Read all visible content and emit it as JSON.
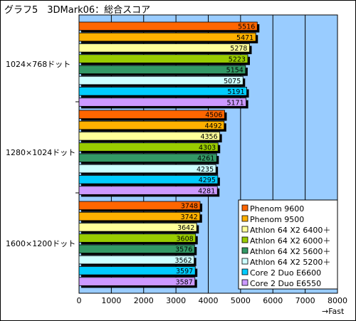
{
  "title": "グラフ5　3DMark06：総合スコア",
  "chart_data": {
    "type": "bar",
    "orientation": "horizontal",
    "title": "グラフ5　3DMark06：総合スコア",
    "categories": [
      "1024×768ドット",
      "1280×1024ドット",
      "1600×1200ドット"
    ],
    "series": [
      {
        "name": "Phenom 9600",
        "color": "#ff6600",
        "values": [
          5516,
          4506,
          3748
        ]
      },
      {
        "name": "Phenom 9500",
        "color": "#ffb000",
        "values": [
          5471,
          4492,
          3742
        ]
      },
      {
        "name": "Athlon 64 X2 6400＋",
        "color": "#ffff99",
        "values": [
          5278,
          4356,
          3642
        ]
      },
      {
        "name": "Athlon 64 X2 6000＋",
        "color": "#99cc00",
        "values": [
          5223,
          4303,
          3608
        ]
      },
      {
        "name": "Athlon 64 X2 5600＋",
        "color": "#339966",
        "values": [
          5154,
          4261,
          3576
        ]
      },
      {
        "name": "Athlon 64 X2 5200＋",
        "color": "#ccffff",
        "values": [
          5075,
          4235,
          3562
        ]
      },
      {
        "name": "Core 2 Duo E6600",
        "color": "#00ccff",
        "values": [
          5191,
          4295,
          3597
        ]
      },
      {
        "name": "Core 2 Duo E6550",
        "color": "#cc99ff",
        "values": [
          5171,
          4281,
          3587
        ]
      }
    ],
    "xlim": [
      0,
      8000
    ],
    "xticks": [
      0,
      1000,
      2000,
      3000,
      4000,
      5000,
      6000,
      7000,
      8000
    ],
    "xlabel": "→Fast",
    "plot_background": "#99ccff",
    "grid": true,
    "legend_position": "bottom-right"
  }
}
